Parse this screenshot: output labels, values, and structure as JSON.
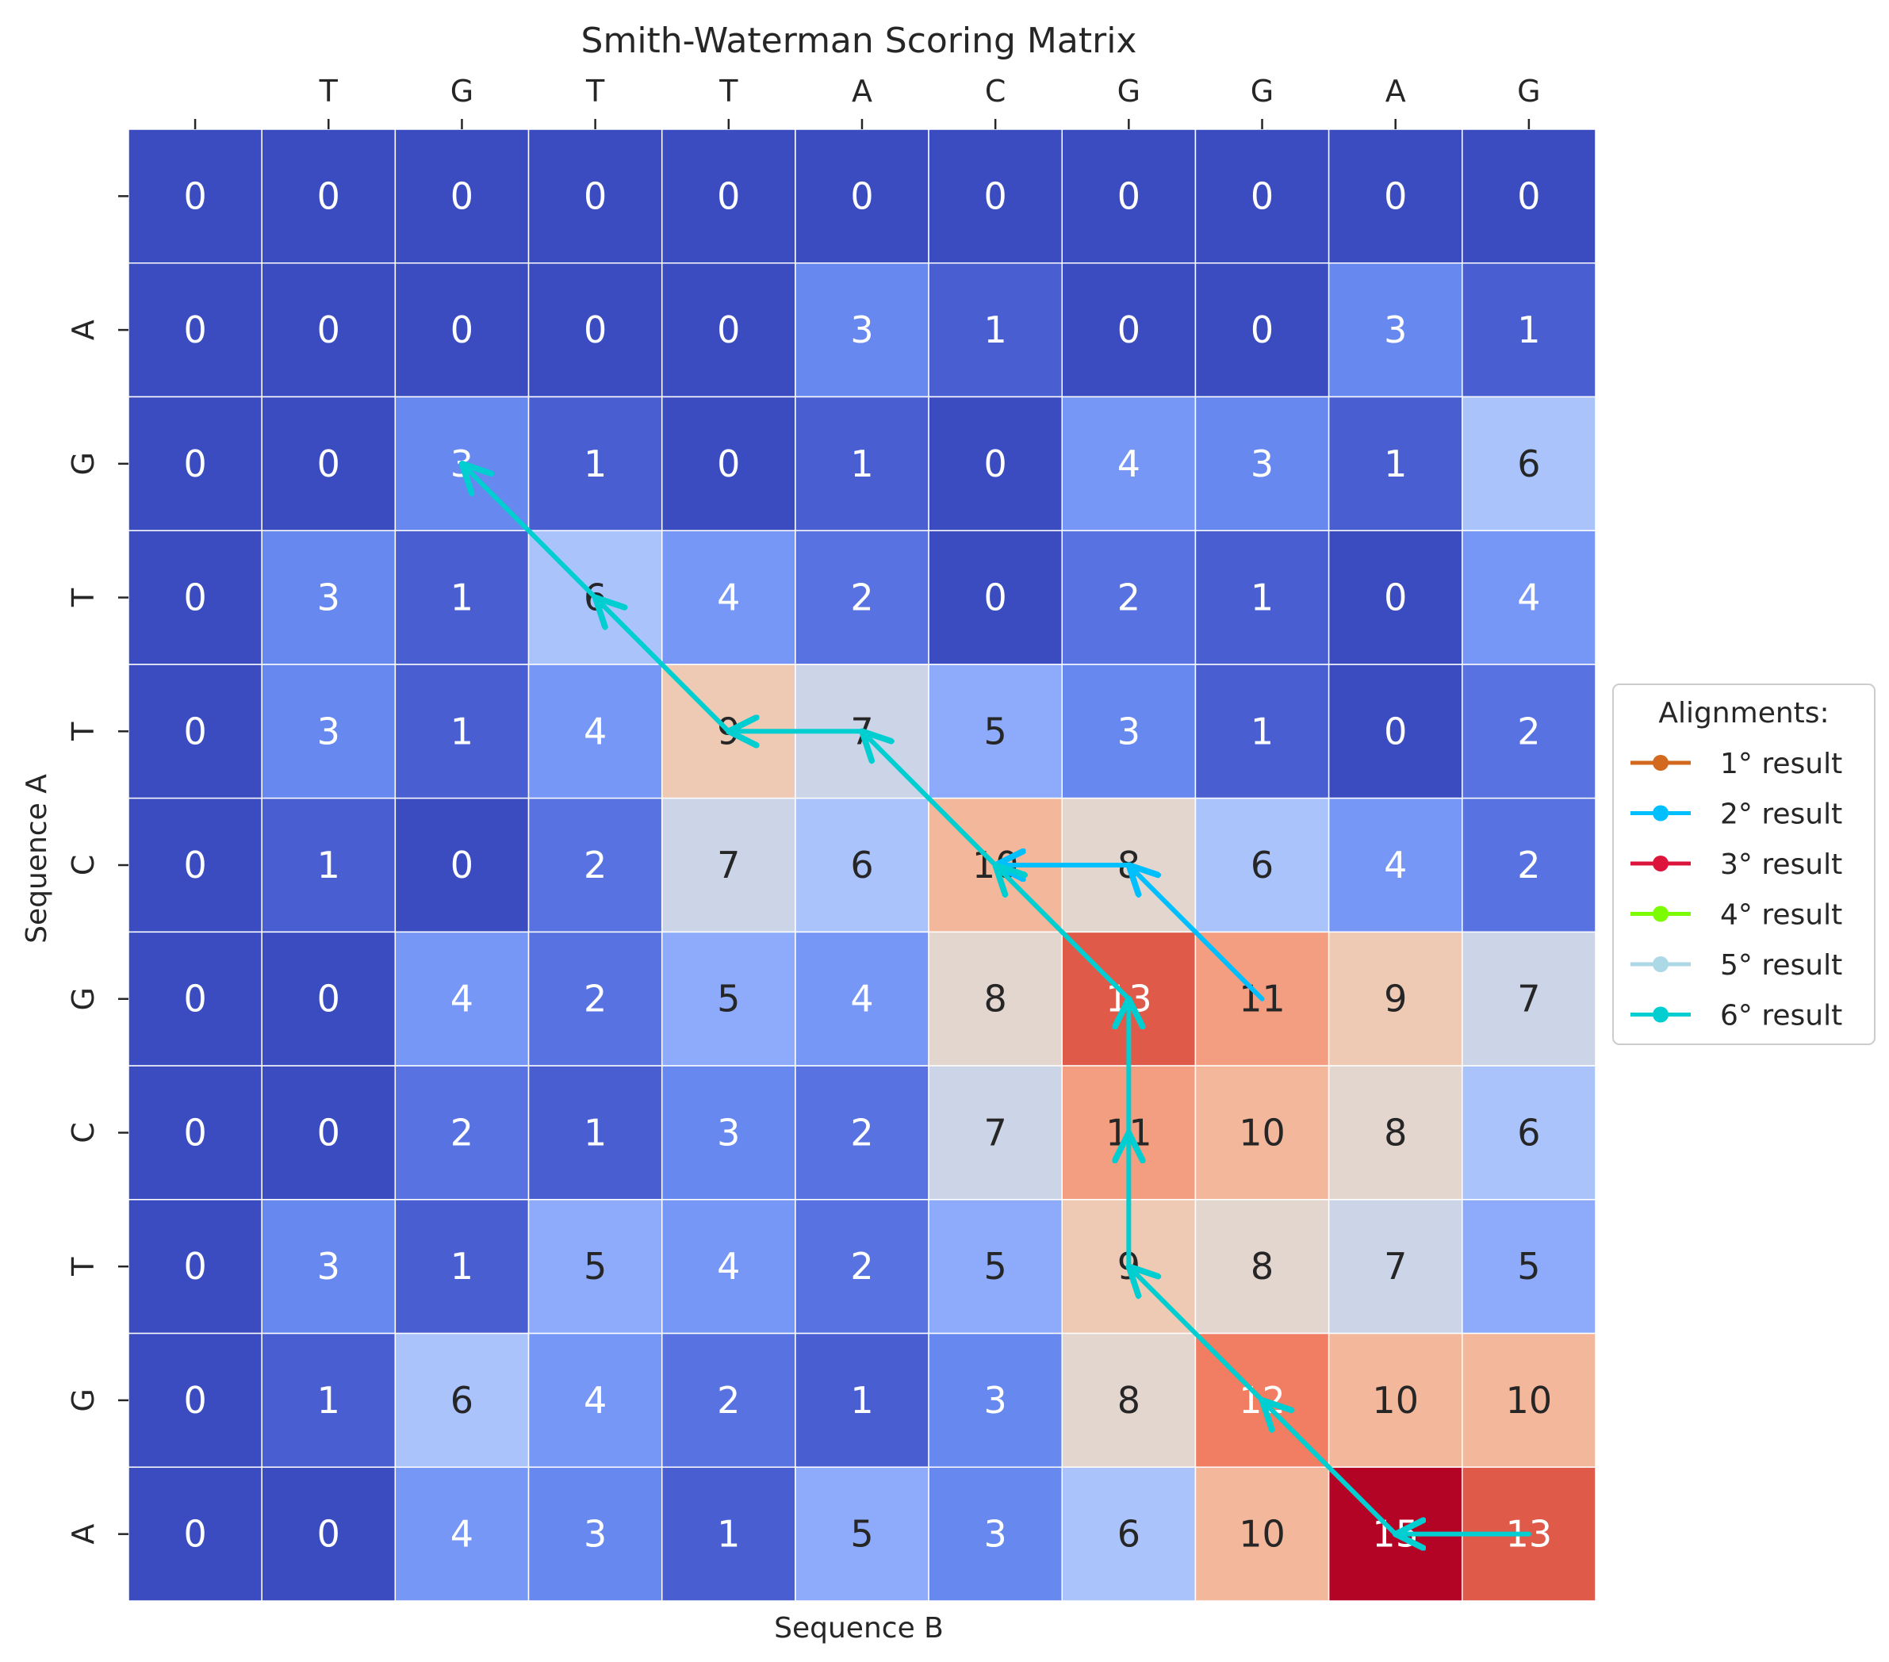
{
  "chart_data": {
    "type": "heatmap",
    "title": "Smith-Waterman Scoring Matrix",
    "xlabel": "Sequence B",
    "ylabel": "Sequence A",
    "x_ticks": [
      "",
      "T",
      "G",
      "T",
      "T",
      "A",
      "C",
      "G",
      "G",
      "A",
      "G"
    ],
    "y_ticks": [
      "",
      "A",
      "G",
      "T",
      "T",
      "C",
      "G",
      "C",
      "T",
      "G",
      "A"
    ],
    "matrix": [
      [
        0,
        0,
        0,
        0,
        0,
        0,
        0,
        0,
        0,
        0,
        0
      ],
      [
        0,
        0,
        0,
        0,
        0,
        3,
        1,
        0,
        0,
        3,
        1
      ],
      [
        0,
        0,
        3,
        1,
        0,
        1,
        0,
        4,
        3,
        1,
        6
      ],
      [
        0,
        3,
        1,
        6,
        4,
        2,
        0,
        2,
        1,
        0,
        4
      ],
      [
        0,
        3,
        1,
        4,
        9,
        7,
        5,
        3,
        1,
        0,
        2
      ],
      [
        0,
        1,
        0,
        2,
        7,
        6,
        10,
        8,
        6,
        4,
        2
      ],
      [
        0,
        0,
        4,
        2,
        5,
        4,
        8,
        13,
        11,
        9,
        7
      ],
      [
        0,
        0,
        2,
        1,
        3,
        2,
        7,
        11,
        10,
        8,
        6
      ],
      [
        0,
        3,
        1,
        5,
        4,
        2,
        5,
        9,
        8,
        7,
        5
      ],
      [
        0,
        1,
        6,
        4,
        2,
        1,
        3,
        8,
        12,
        10,
        10
      ],
      [
        0,
        0,
        4,
        3,
        1,
        5,
        3,
        6,
        10,
        15,
        13
      ]
    ],
    "colormap": "coolwarm",
    "value_range": [
      0,
      15
    ],
    "legend": {
      "title": "Alignments:",
      "placement": "right",
      "entries": [
        {
          "name": "1° result",
          "color": "#d2691e"
        },
        {
          "name": "2° result",
          "color": "#00bfff"
        },
        {
          "name": "3° result",
          "color": "#dc143c"
        },
        {
          "name": "4° result",
          "color": "#7cfc00"
        },
        {
          "name": "5° result",
          "color": "#add8e6"
        },
        {
          "name": "6° result",
          "color": "#00ced1"
        }
      ]
    },
    "paths": [
      {
        "name": "2° result",
        "color": "#00bfff",
        "cells": [
          [
            6,
            8
          ],
          [
            5,
            7
          ],
          [
            5,
            6
          ]
        ]
      },
      {
        "name": "6° result",
        "color": "#00ced1",
        "cells": [
          [
            10,
            10
          ],
          [
            10,
            9
          ],
          [
            9,
            8
          ],
          [
            8,
            7
          ],
          [
            7,
            7
          ],
          [
            6,
            7
          ],
          [
            5,
            6
          ],
          [
            4,
            5
          ],
          [
            4,
            4
          ],
          [
            3,
            3
          ],
          [
            2,
            2
          ]
        ]
      }
    ]
  }
}
